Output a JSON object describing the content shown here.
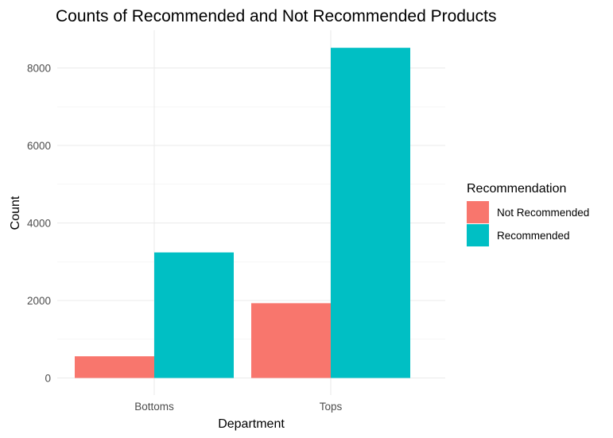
{
  "chart_data": {
    "type": "bar",
    "title": "Counts of Recommended and Not Recommended Products",
    "xlabel": "Department",
    "ylabel": "Count",
    "categories": [
      "Bottoms",
      "Tops"
    ],
    "series": [
      {
        "name": "Not Recommended",
        "values": [
          560,
          1930
        ],
        "color": "#F8766D"
      },
      {
        "name": "Recommended",
        "values": [
          3240,
          8520
        ],
        "color": "#00BFC4"
      }
    ],
    "yticks": [
      0,
      2000,
      4000,
      6000,
      8000
    ],
    "ylim": [
      0,
      8950
    ],
    "grid": true,
    "legend": {
      "title": "Recommendation",
      "position": "right"
    }
  }
}
